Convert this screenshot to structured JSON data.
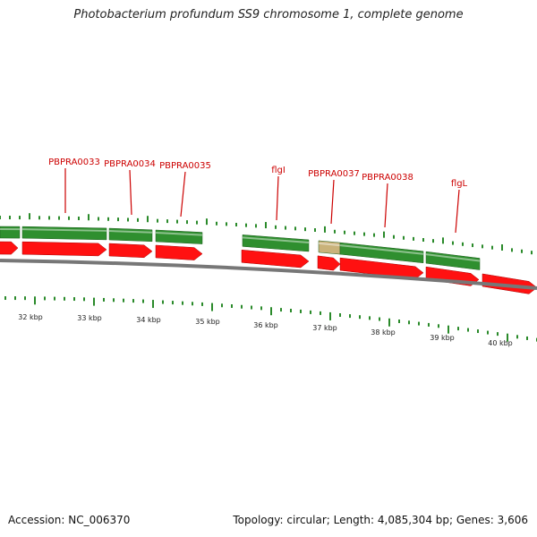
{
  "title": "Photobacterium profundum SS9 chromosome 1, complete genome",
  "accession": "Accession: NC_006370",
  "summary": "Topology: circular; Length: 4,085,304 bp; Genes: 3,606",
  "colors": {
    "gene_forward": "#2f8f2f",
    "gene_cds": "#ff1111",
    "label": "#cc0000",
    "tick": "#2a8a2a",
    "backbone": "#777777",
    "pseudo_gene": "#c9b27a"
  },
  "gene_labels": [
    {
      "text": "PBPRA0033",
      "kbp": 32.8
    },
    {
      "text": "PBPRA0034",
      "kbp": 33.8
    },
    {
      "text": "PBPRA0035",
      "kbp": 34.8
    },
    {
      "text": "flgI",
      "kbp": 36.4
    },
    {
      "text": "PBPRA0037",
      "kbp": 37.3
    },
    {
      "text": "PBPRA0038",
      "kbp": 38.2
    },
    {
      "text": "flgL",
      "kbp": 39.4
    }
  ],
  "scale_labels": [
    "32 kbp",
    "33 kbp",
    "34 kbp",
    "35 kbp",
    "36 kbp",
    "37 kbp",
    "38 kbp",
    "39 kbp",
    "40 kbp"
  ]
}
